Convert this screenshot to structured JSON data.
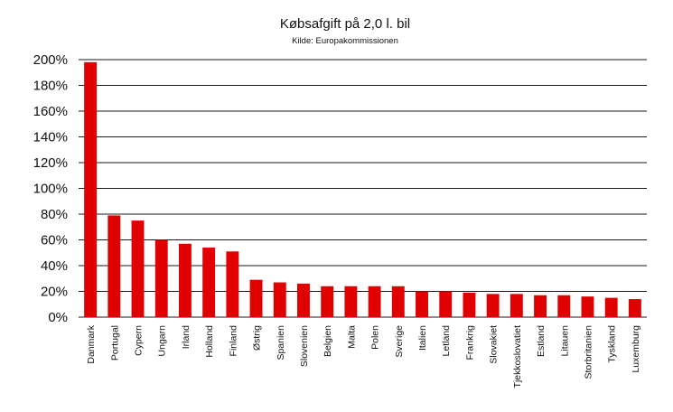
{
  "chart_data": {
    "type": "bar",
    "title": "Købsafgift på 2,0 l. bil",
    "subtitle": "Kilde: Europakommissionen",
    "xlabel": "",
    "ylabel": "",
    "ylim": [
      0,
      200
    ],
    "yticks": [
      "0%",
      "20%",
      "40%",
      "60%",
      "80%",
      "100%",
      "120%",
      "140%",
      "160%",
      "180%",
      "200%"
    ],
    "grid": true,
    "bar_color": "#e00000",
    "categories": [
      "Danmark",
      "Portugal",
      "Cypern",
      "Ungarn",
      "Irland",
      "Holland",
      "Finland",
      "Østrig",
      "Spanien",
      "Slovenien",
      "Belgien",
      "Malta",
      "Polen",
      "Sverige",
      "Italien",
      "Letland",
      "Frankrig",
      "Slovakiet",
      "Tjekkoslovatiet",
      "Estland",
      "Litauen",
      "Storbritanien",
      "Tyskland",
      "Luxemburg"
    ],
    "values": [
      198,
      79,
      75,
      60,
      57,
      54,
      51,
      29,
      27,
      26,
      24,
      24,
      24,
      24,
      20,
      20,
      19,
      18,
      18,
      17,
      17,
      16,
      15,
      14
    ]
  }
}
